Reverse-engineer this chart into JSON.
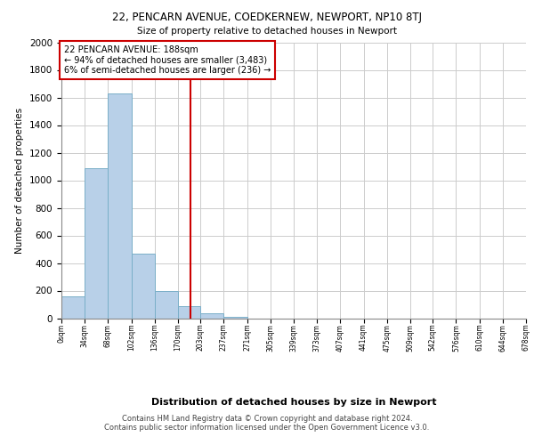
{
  "title1": "22, PENCARN AVENUE, COEDKERNEW, NEWPORT, NP10 8TJ",
  "title2": "Size of property relative to detached houses in Newport",
  "xlabel": "Distribution of detached houses by size in Newport",
  "ylabel": "Number of detached properties",
  "footer1": "Contains HM Land Registry data © Crown copyright and database right 2024.",
  "footer2": "Contains public sector information licensed under the Open Government Licence v3.0.",
  "annotation_line1": "22 PENCARN AVENUE: 188sqm",
  "annotation_line2": "← 94% of detached houses are smaller (3,483)",
  "annotation_line3": "6% of semi-detached houses are larger (236) →",
  "property_size": 188,
  "bins": [
    0,
    34,
    68,
    102,
    136,
    170,
    203,
    237,
    271,
    305,
    339,
    373,
    407,
    441,
    475,
    509,
    542,
    576,
    610,
    644,
    678
  ],
  "bar_values": [
    160,
    1090,
    1630,
    470,
    200,
    85,
    35,
    10,
    0,
    0,
    0,
    0,
    0,
    0,
    0,
    0,
    0,
    0,
    0,
    0
  ],
  "bar_color": "#b8d0e8",
  "bar_edge_color": "#7aafc8",
  "vline_color": "#cc0000",
  "vline_x": 188,
  "annotation_edge_color": "#cc0000",
  "annotation_fill": "#ffffff",
  "grid_color": "#cccccc",
  "bg_color": "#ffffff",
  "ylim": [
    0,
    2000
  ],
  "yticks": [
    0,
    200,
    400,
    600,
    800,
    1000,
    1200,
    1400,
    1600,
    1800,
    2000
  ]
}
